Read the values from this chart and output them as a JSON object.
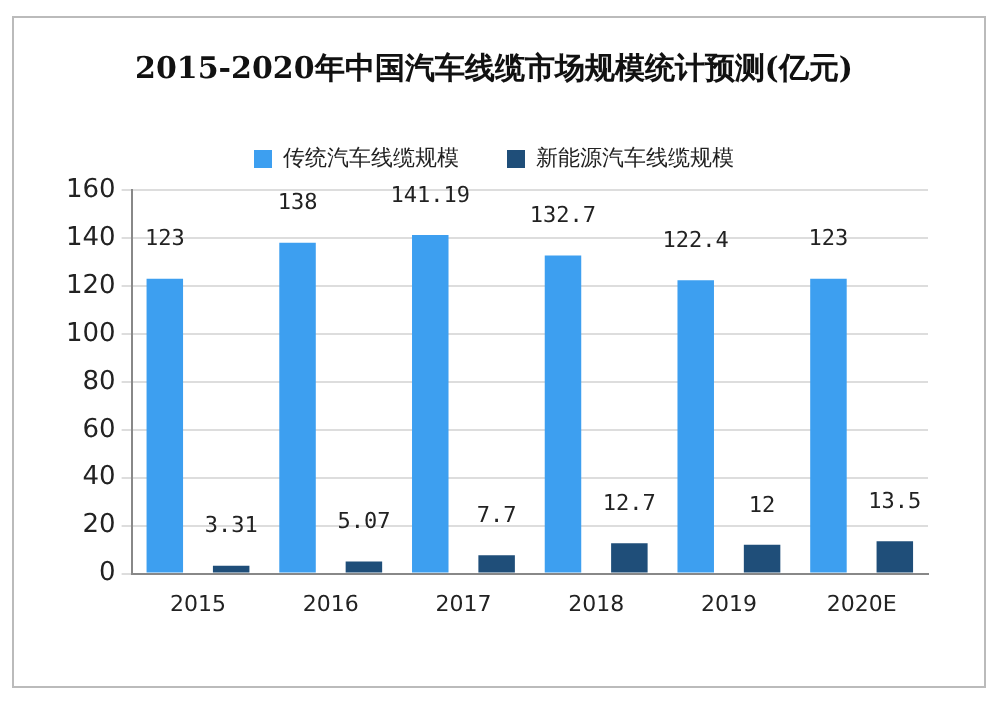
{
  "chart_data": {
    "type": "bar",
    "title": "2015-2020年中国汽车线缆市场规模统计预测(亿元)",
    "categories": [
      "2015",
      "2016",
      "2017",
      "2018",
      "2019",
      "2020E"
    ],
    "series": [
      {
        "name": "传统汽车线缆规模",
        "color": "#3d9ff0",
        "values": [
          123,
          138,
          141.19,
          132.7,
          122.4,
          123
        ]
      },
      {
        "name": "新能源汽车线缆规模",
        "color": "#1f4e79",
        "values": [
          3.31,
          5.07,
          7.7,
          12.7,
          12,
          13.5
        ]
      }
    ],
    "ylim": [
      0,
      160
    ],
    "yticks": [
      0,
      20,
      40,
      60,
      80,
      100,
      120,
      140,
      160
    ],
    "grid": "y",
    "legend": "top",
    "data_labels": true
  }
}
